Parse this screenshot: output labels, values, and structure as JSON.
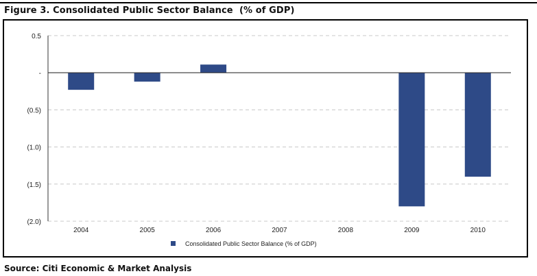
{
  "title": "Figure 3. Consolidated Public Sector Balance  (% of GDP)",
  "source": "Source: Citi Economic & Market Analysis",
  "colors": {
    "bar": "#2e4a87",
    "grid": "#c8c8c8",
    "axis": "#333333"
  },
  "chart_data": {
    "type": "bar",
    "categories": [
      "2004",
      "2005",
      "2006",
      "2007",
      "2008",
      "2009",
      "2010"
    ],
    "series": [
      {
        "name": "Consolidated Public Sector Balance (% of GDP)",
        "values": [
          -0.23,
          -0.12,
          0.11,
          0,
          0,
          -1.8,
          -1.4
        ]
      }
    ],
    "ylim": [
      -2.0,
      0.5
    ],
    "yticks": [
      0.5,
      0,
      -0.5,
      -1.0,
      -1.5,
      -2.0
    ],
    "ytick_labels": [
      "0.5",
      "-",
      "(0.5)",
      "(1.0)",
      "(1.5)",
      "(2.0)"
    ],
    "grid": true,
    "legend": "bottom-center",
    "title": "Figure 3. Consolidated Public Sector Balance  (% of GDP)",
    "xlabel": "",
    "ylabel": ""
  }
}
